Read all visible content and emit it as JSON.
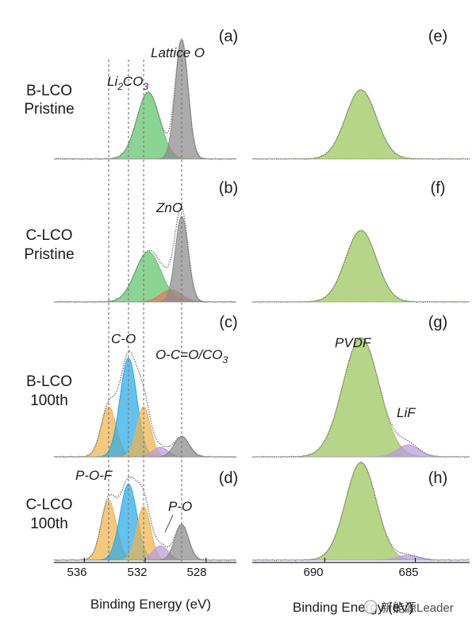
{
  "colors": {
    "green": "#5fc36a",
    "gray": "#8a8a8a",
    "blue": "#2aa9e6",
    "yellow": "#eeb34e",
    "red": "#e07a5f",
    "purple": "#b79cd9",
    "olive": "#9bc55a",
    "dotted": "#7a7a7a"
  },
  "chart_data": [
    {
      "type": "area",
      "panel": "left",
      "x_reversed": true,
      "xlim": [
        538,
        526
      ],
      "xticks": [
        "536",
        "532",
        "528"
      ],
      "xlabel": "Binding Energy (eV)",
      "rows": [
        {
          "letter": "(a)",
          "sample": [
            "B-LCO",
            "Pristine"
          ],
          "peaks": [
            {
              "name": "Li2CO3",
              "center": 531.8,
              "sigma": 0.75,
              "amp": 0.56,
              "color": "green"
            },
            {
              "name": "Lattice O",
              "center": 529.6,
              "sigma": 0.42,
              "amp": 1.0,
              "color": "gray"
            }
          ],
          "labels": [
            {
              "text": "Li",
              "sub": "2",
              "text2": "CO",
              "sub2": "3"
            },
            {
              "text": "Lattice O"
            }
          ]
        },
        {
          "letter": "(b)",
          "sample": [
            "C-LCO",
            "Pristine"
          ],
          "peaks": [
            {
              "name": "Li2CO3",
              "center": 531.8,
              "sigma": 0.85,
              "amp": 0.42,
              "color": "green"
            },
            {
              "name": "ZnO",
              "center": 530.3,
              "sigma": 0.7,
              "amp": 0.1,
              "color": "red"
            },
            {
              "name": "Lattice O",
              "center": 529.6,
              "sigma": 0.42,
              "amp": 0.72,
              "color": "gray"
            }
          ],
          "labels": [
            {
              "text": "ZnO"
            }
          ]
        },
        {
          "letter": "(c)",
          "sample": [
            "B-LCO",
            "100th"
          ],
          "peaks": [
            {
              "name": "P-O-F",
              "center": 534.4,
              "sigma": 0.5,
              "amp": 0.42,
              "color": "yellow"
            },
            {
              "name": "C-O",
              "center": 533.1,
              "sigma": 0.55,
              "amp": 0.83,
              "color": "blue"
            },
            {
              "name": "O-C=O/CO3",
              "center": 532.1,
              "sigma": 0.45,
              "amp": 0.42,
              "color": "yellow"
            },
            {
              "name": "P-O",
              "center": 531.0,
              "sigma": 0.5,
              "amp": 0.08,
              "color": "purple"
            },
            {
              "name": "Lattice O",
              "center": 529.6,
              "sigma": 0.5,
              "amp": 0.17,
              "color": "gray"
            }
          ],
          "labels": [
            {
              "text": "C-O"
            },
            {
              "text": "O-C=O/CO",
              "sub": "3"
            }
          ]
        },
        {
          "letter": "(d)",
          "sample": [
            "C-LCO",
            "100th"
          ],
          "peaks": [
            {
              "name": "P-O-F",
              "center": 534.4,
              "sigma": 0.5,
              "amp": 0.5,
              "color": "yellow"
            },
            {
              "name": "C-O",
              "center": 533.1,
              "sigma": 0.55,
              "amp": 0.64,
              "color": "blue"
            },
            {
              "name": "O-C=O/CO3",
              "center": 532.1,
              "sigma": 0.45,
              "amp": 0.45,
              "color": "yellow"
            },
            {
              "name": "P-O",
              "center": 531.0,
              "sigma": 0.5,
              "amp": 0.12,
              "color": "purple"
            },
            {
              "name": "Lattice O",
              "center": 529.6,
              "sigma": 0.45,
              "amp": 0.3,
              "color": "gray"
            }
          ],
          "labels": [
            {
              "text": "P-O-F"
            },
            {
              "text": "P-O"
            }
          ]
        }
      ],
      "reference_lines_x": [
        534.4,
        533.1,
        532.1,
        529.6
      ]
    },
    {
      "type": "area",
      "panel": "right",
      "x_reversed": true,
      "xlim": [
        694,
        682
      ],
      "xticks": [
        "690",
        "685"
      ],
      "xlabel": "Binding Energy (eV)",
      "rows": [
        {
          "letter": "(e)",
          "peaks": [
            {
              "name": "PVDF",
              "center": 688.0,
              "sigma": 0.85,
              "amp": 0.58,
              "color": "olive"
            }
          ],
          "labels": []
        },
        {
          "letter": "(f)",
          "peaks": [
            {
              "name": "PVDF",
              "center": 688.0,
              "sigma": 0.85,
              "amp": 0.6,
              "color": "olive"
            }
          ],
          "labels": []
        },
        {
          "letter": "(g)",
          "peaks": [
            {
              "name": "PVDF",
              "center": 688.0,
              "sigma": 1.0,
              "amp": 1.0,
              "color": "olive"
            },
            {
              "name": "LiF",
              "center": 685.4,
              "sigma": 0.6,
              "amp": 0.1,
              "color": "purple"
            }
          ],
          "labels": [
            {
              "text": "PVDF"
            },
            {
              "text": "LiF"
            }
          ]
        },
        {
          "letter": "(h)",
          "peaks": [
            {
              "name": "PVDF",
              "center": 688.0,
              "sigma": 0.85,
              "amp": 0.82,
              "color": "olive"
            },
            {
              "name": "LiF",
              "center": 685.4,
              "sigma": 0.6,
              "amp": 0.04,
              "color": "purple"
            }
          ],
          "labels": []
        }
      ]
    }
  ],
  "watermark": "新能源Leader"
}
